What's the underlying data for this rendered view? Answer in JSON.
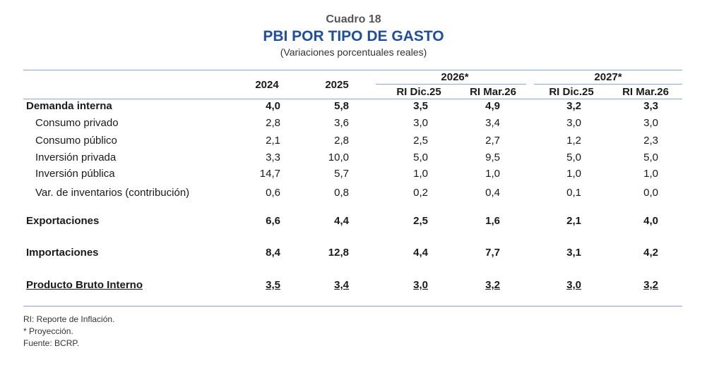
{
  "header": {
    "label": "Cuadro 18",
    "title": "PBI POR TIPO DE GASTO",
    "subtitle": "(Variaciones porcentuales reales)"
  },
  "columns": {
    "y2024": "2024",
    "y2025": "2025",
    "g2026": "2026*",
    "g2027": "2027*",
    "sub": [
      "RI Dic.25",
      "RI Mar.26",
      "RI Dic.25",
      "RI Mar.26"
    ]
  },
  "rows": [
    {
      "label": "Demanda interna",
      "values": [
        "4,0",
        "5,8",
        "3,5",
        "4,9",
        "3,2",
        "3,3"
      ]
    },
    {
      "label": "Consumo privado",
      "values": [
        "2,8",
        "3,6",
        "3,0",
        "3,4",
        "3,0",
        "3,0"
      ]
    },
    {
      "label": "Consumo público",
      "values": [
        "2,1",
        "2,8",
        "2,5",
        "2,7",
        "1,2",
        "2,3"
      ]
    },
    {
      "label": "Inversión privada",
      "values": [
        "3,3",
        "10,0",
        "5,0",
        "9,5",
        "5,0",
        "5,0"
      ]
    },
    {
      "label": "Inversión pública",
      "values": [
        "14,7",
        "5,7",
        "1,0",
        "1,0",
        "1,0",
        "1,0"
      ]
    },
    {
      "label": "Var. de inventarios (contribución)",
      "values": [
        "0,6",
        "0,8",
        "0,2",
        "0,4",
        "0,1",
        "0,0"
      ]
    },
    {
      "label": "Exportaciones",
      "values": [
        "6,6",
        "4,4",
        "2,5",
        "1,6",
        "2,1",
        "4,0"
      ]
    },
    {
      "label": "Importaciones",
      "values": [
        "8,4",
        "12,8",
        "4,4",
        "7,7",
        "3,1",
        "4,2"
      ]
    },
    {
      "label": "Producto Bruto Interno",
      "values": [
        "3,5",
        "3,4",
        "3,0",
        "3,2",
        "3,0",
        "3,2"
      ]
    }
  ],
  "notes": [
    "RI: Reporte de Inflación.",
    "* Proyección.",
    "Fuente: BCRP."
  ]
}
